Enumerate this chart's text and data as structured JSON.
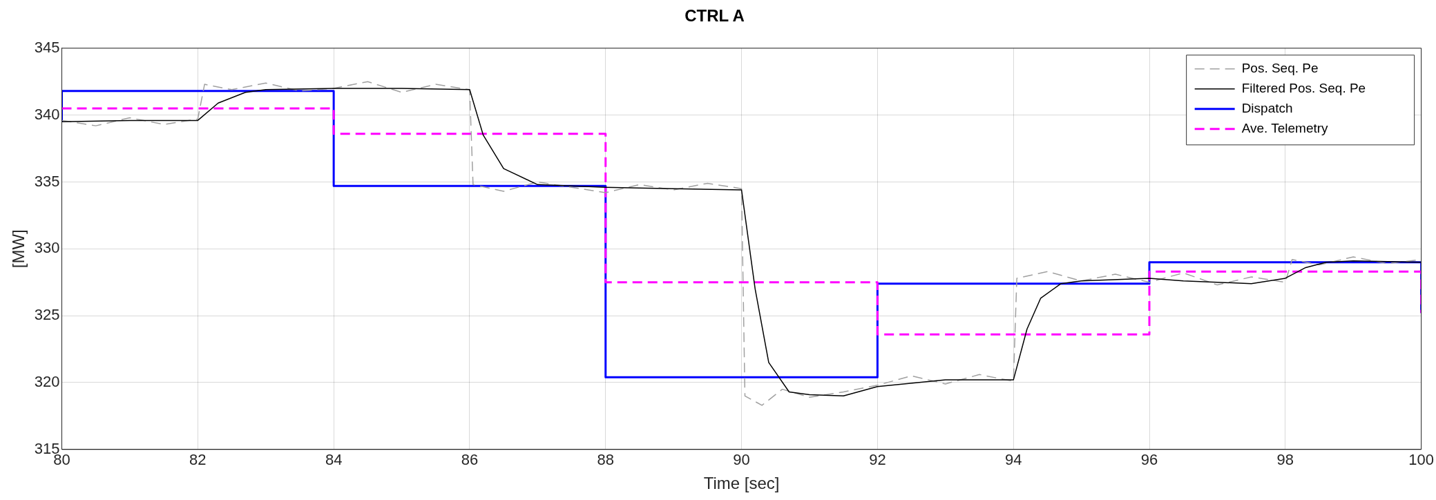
{
  "chart_data": {
    "type": "line",
    "title": "CTRL A",
    "xlabel": "Time [sec]",
    "ylabel": "[MW]",
    "xlim": [
      80,
      100
    ],
    "xticks": [
      80,
      82,
      84,
      86,
      88,
      90,
      92,
      94,
      96,
      98,
      100
    ],
    "ylim": [
      315,
      345
    ],
    "yticks": [
      315,
      320,
      325,
      330,
      335,
      340,
      345
    ],
    "grid": true,
    "legend": "top right",
    "marker": "none",
    "series": [
      {
        "name": "Pos. Seq. Pe",
        "color": "#a0a0a0",
        "line_style": "dashed",
        "x": [
          80,
          80.5,
          81,
          81.5,
          82,
          82.1,
          82.5,
          83,
          83.5,
          84,
          84.5,
          85,
          85.5,
          86,
          86.05,
          86.5,
          87,
          87.5,
          88,
          88.5,
          89,
          89.5,
          90,
          90.05,
          90.3,
          90.6,
          91,
          91.5,
          92,
          92.5,
          93,
          93.5,
          94,
          94.05,
          94.5,
          95,
          95.5,
          96,
          96.5,
          97,
          97.5,
          98,
          98.1,
          98.5,
          99,
          99.5,
          100
        ],
        "values": [
          339.6,
          339.2,
          339.8,
          339.3,
          339.7,
          342.3,
          341.9,
          342.4,
          341.8,
          342.0,
          342.5,
          341.7,
          342.3,
          341.9,
          334.8,
          334.3,
          335.0,
          334.6,
          334.2,
          334.8,
          334.4,
          334.9,
          334.5,
          319.0,
          318.3,
          319.5,
          318.9,
          319.3,
          319.8,
          320.5,
          319.9,
          320.6,
          320.1,
          327.8,
          328.3,
          327.6,
          328.1,
          327.5,
          328.2,
          327.3,
          327.9,
          327.5,
          329.2,
          328.8,
          329.4,
          328.9,
          329.2
        ]
      },
      {
        "name": "Filtered Pos. Seq. Pe",
        "color": "#000000",
        "line_style": "solid",
        "x": [
          80,
          81,
          82,
          82.3,
          82.7,
          83,
          84,
          85,
          86,
          86.2,
          86.5,
          87,
          88,
          89,
          90,
          90.2,
          90.4,
          90.7,
          91,
          91.5,
          92,
          93,
          94,
          94.2,
          94.4,
          94.7,
          95,
          96,
          96.5,
          97,
          97.5,
          98,
          98.3,
          98.6,
          99,
          100
        ],
        "values": [
          339.5,
          339.6,
          339.6,
          340.9,
          341.7,
          341.9,
          342.0,
          342.0,
          341.9,
          338.5,
          336.0,
          334.8,
          334.6,
          334.5,
          334.4,
          327.0,
          321.5,
          319.3,
          319.1,
          319.0,
          319.7,
          320.2,
          320.2,
          324.0,
          326.3,
          327.4,
          327.6,
          327.8,
          327.6,
          327.5,
          327.4,
          327.8,
          328.6,
          329.0,
          329.1,
          329.0
        ]
      },
      {
        "name": "Dispatch",
        "type": "step",
        "color": "#0000ff",
        "line_style": "solid",
        "x": [
          80,
          80,
          84,
          88,
          92,
          96,
          100,
          100
        ],
        "values": [
          339.5,
          341.8,
          334.7,
          320.4,
          327.4,
          329.0,
          329.0,
          325.2
        ]
      },
      {
        "name": "Ave. Telemetry",
        "type": "step",
        "color": "#ff00ff",
        "line_style": "dashed",
        "x": [
          80,
          84,
          88,
          92,
          96,
          100,
          100
        ],
        "values": [
          340.5,
          338.6,
          327.5,
          323.6,
          328.3,
          328.3,
          325.2
        ]
      }
    ]
  }
}
